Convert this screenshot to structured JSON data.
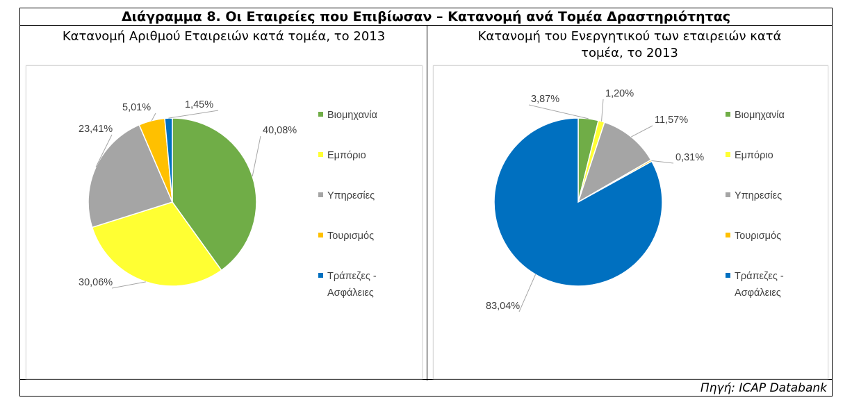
{
  "title": "Διάγραμμα 8. Οι Εταιρείες που Επιβίωσαν – Κατανομή ανά Τομέα Δραστηριότητας",
  "source": "Πηγή: ICAP Databank",
  "chart_data": [
    {
      "type": "pie",
      "title": "Κατανομή Αριθμού Εταιρειών κατά τομέα, το 2013",
      "categories": [
        "Βιομηχανία",
        "Εμπόριο",
        "Υπηρεσίες",
        "Τουρισμός",
        "Τράπεζες - Ασφάλειες"
      ],
      "values": [
        40.08,
        30.06,
        23.41,
        5.01,
        1.45
      ],
      "labels": [
        "40,08%",
        "30,06%",
        "23,41%",
        "5,01%",
        "1,45%"
      ],
      "colors": [
        "#70AD47",
        "#FFFF33",
        "#A5A5A5",
        "#FFC000",
        "#0070C0"
      ],
      "legend": "right"
    },
    {
      "type": "pie",
      "title": "Κατανομή του Ενεργητικού των εταιρειών κατά τομέα, το 2013",
      "categories": [
        "Βιομηχανία",
        "Εμπόριο",
        "Υπηρεσίες",
        "Τουρισμός",
        "Τράπεζες - Ασφάλειες"
      ],
      "values": [
        3.87,
        1.2,
        11.57,
        0.31,
        83.04
      ],
      "labels": [
        "3,87%",
        "1,20%",
        "11,57%",
        "0,31%",
        "83,04%"
      ],
      "colors": [
        "#70AD47",
        "#FFFF33",
        "#A5A5A5",
        "#FFC000",
        "#0070C0"
      ],
      "legend": "right"
    }
  ]
}
